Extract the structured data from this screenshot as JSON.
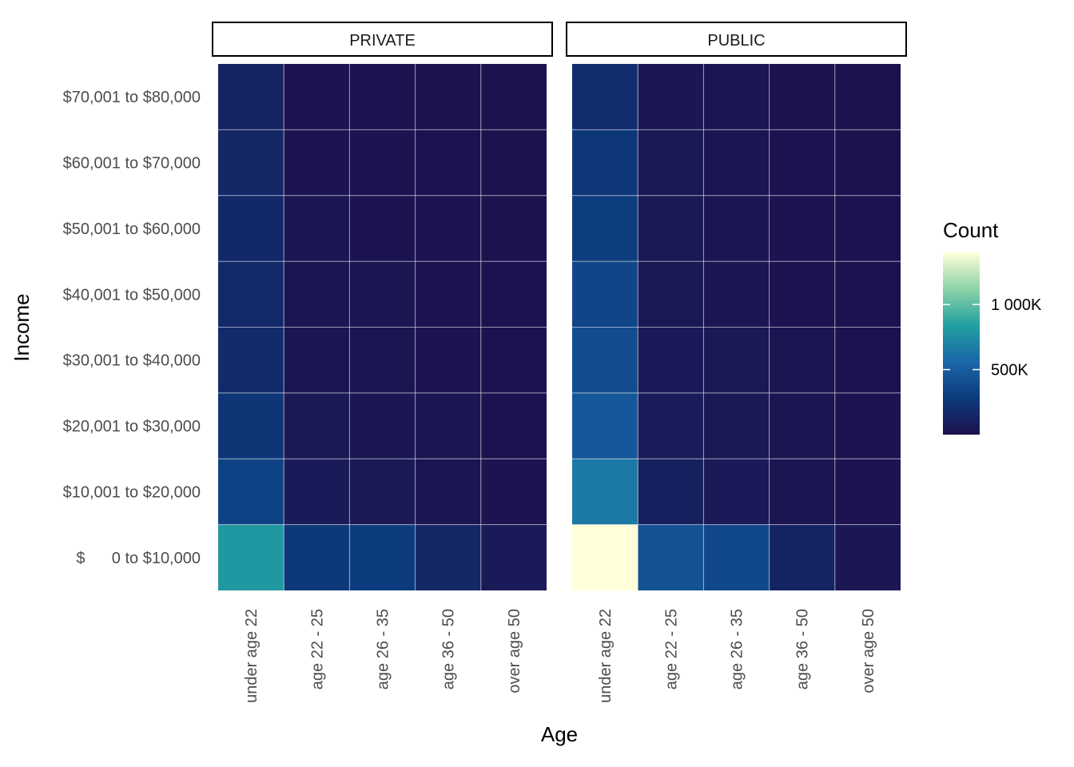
{
  "chart_data": {
    "type": "heatmap",
    "xlabel": "Age",
    "ylabel": "Income",
    "x_categories": [
      "under age 22",
      "age 22 - 25",
      "age 26 - 35",
      "age 36 - 50",
      "over age 50"
    ],
    "y_categories": [
      "$      0 to $10,000",
      "$10,001 to $20,000",
      "$20,001 to $30,000",
      "$30,001 to $40,000",
      "$40,001 to $50,000",
      "$50,001 to $60,000",
      "$60,001 to $70,000",
      "$70,001 to $80,000"
    ],
    "facets": [
      {
        "name": "PRIVATE",
        "values": [
          [
            800000,
            270000,
            290000,
            150000,
            60000
          ],
          [
            330000,
            70000,
            55000,
            30000,
            15000
          ],
          [
            250000,
            50000,
            40000,
            25000,
            10000
          ],
          [
            180000,
            35000,
            30000,
            20000,
            10000
          ],
          [
            170000,
            30000,
            25000,
            15000,
            10000
          ],
          [
            160000,
            25000,
            20000,
            15000,
            8000
          ],
          [
            150000,
            20000,
            15000,
            10000,
            5000
          ],
          [
            120000,
            15000,
            10000,
            8000,
            5000
          ]
        ]
      },
      {
        "name": "PUBLIC",
        "values": [
          [
            1400000,
            430000,
            370000,
            130000,
            40000
          ],
          [
            650000,
            100000,
            60000,
            30000,
            15000
          ],
          [
            460000,
            80000,
            50000,
            25000,
            15000
          ],
          [
            390000,
            60000,
            45000,
            25000,
            10000
          ],
          [
            350000,
            55000,
            40000,
            20000,
            10000
          ],
          [
            300000,
            50000,
            35000,
            20000,
            10000
          ],
          [
            260000,
            45000,
            30000,
            15000,
            8000
          ],
          [
            190000,
            40000,
            25000,
            12000,
            8000
          ]
        ]
      }
    ],
    "legend": {
      "title": "Count",
      "position": "right",
      "min": 0,
      "max": 1400000,
      "ticks": [
        {
          "value": 500000,
          "label": "500K"
        },
        {
          "value": 1000000,
          "label": "1 000K"
        }
      ],
      "palette": [
        "#1d114d",
        "#0c3a7c",
        "#1a67a9",
        "#20a0a0",
        "#8dd3a7",
        "#ffffd9"
      ]
    },
    "grid": true
  }
}
